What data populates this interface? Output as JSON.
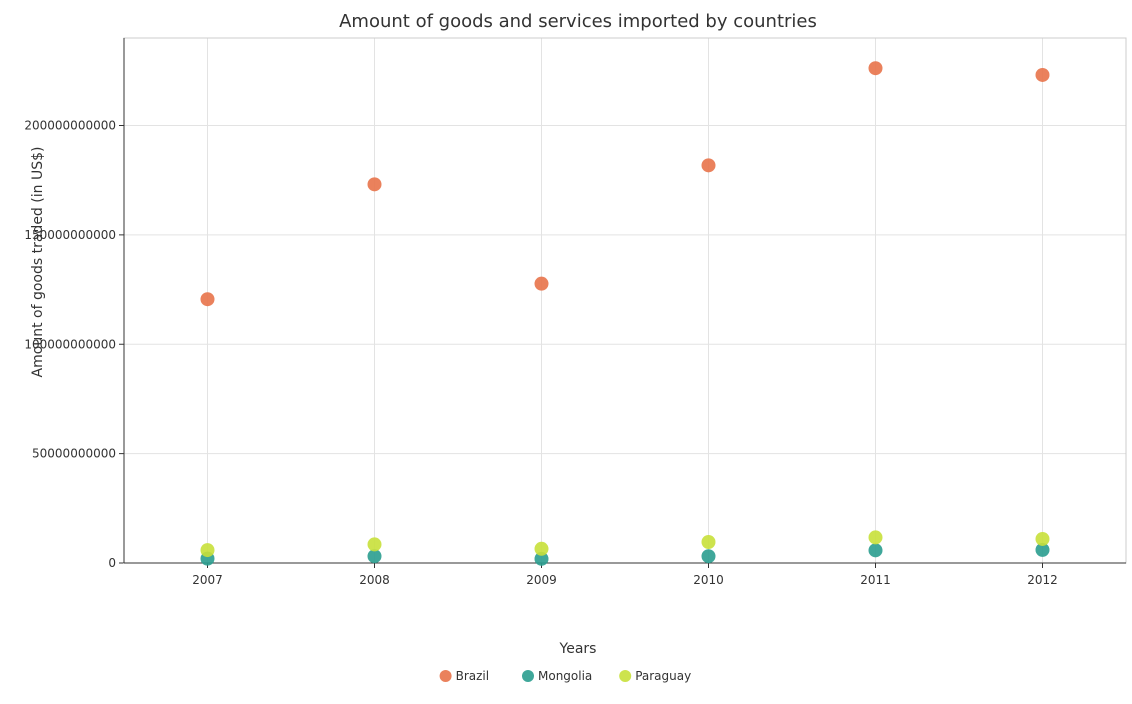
{
  "chart_data": {
    "type": "scatter",
    "title": "Amount of goods and services imported by countries",
    "xlabel": "Years",
    "ylabel": "Amount of goods traded (in US$)",
    "categories": [
      "2007",
      "2008",
      "2009",
      "2010",
      "2011",
      "2012"
    ],
    "ylim": [
      0,
      240000000000
    ],
    "yticks": [
      0,
      50000000000,
      100000000000,
      150000000000,
      200000000000
    ],
    "ytick_labels": [
      "0",
      "50000000000",
      "100000000000",
      "150000000000",
      "200000000000"
    ],
    "grid": true,
    "legend_position": "bottom-center",
    "series": [
      {
        "name": "Brazil",
        "color": "#e8734a",
        "values": [
          120600000000,
          173100000000,
          127700000000,
          181800000000,
          226200000000,
          223100000000
        ]
      },
      {
        "name": "Mongolia",
        "color": "#2a9d8f",
        "values": [
          2000000000,
          3100000000,
          1900000000,
          3100000000,
          5800000000,
          6000000000
        ]
      },
      {
        "name": "Paraguay",
        "color": "#c8e03a",
        "values": [
          5900000000,
          8500000000,
          6500000000,
          9600000000,
          11700000000,
          11000000000
        ]
      }
    ]
  }
}
